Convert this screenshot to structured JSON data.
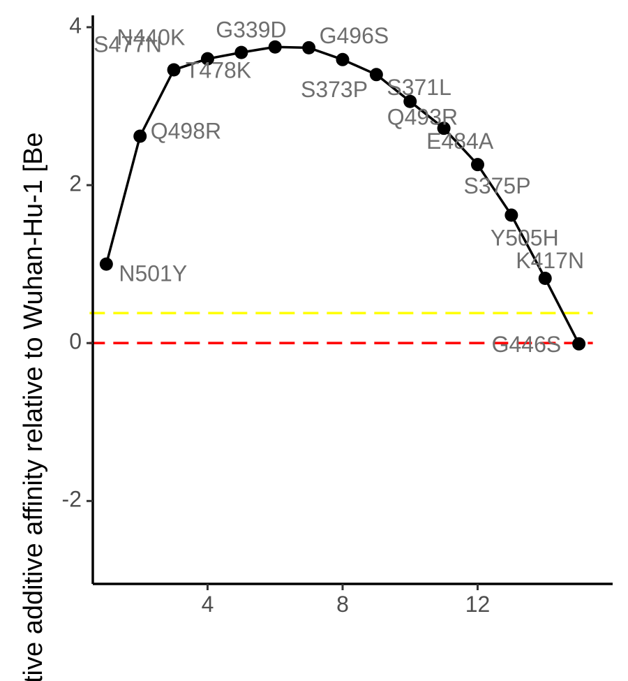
{
  "chart_data": {
    "type": "line",
    "title": "",
    "xlabel": "",
    "ylabel": "tive additive affinity relative to Wuhan-Hu-1 [Be",
    "xlim": [
      0.6,
      16
    ],
    "ylim": [
      -3.05,
      4.15
    ],
    "xticks": [
      4,
      8,
      12
    ],
    "yticks": [
      -2,
      0,
      2,
      4
    ],
    "grid": false,
    "legend": "none",
    "line_color": "#000000",
    "points": [
      {
        "x": 1,
        "y": 1.0,
        "label": "N501Y"
      },
      {
        "x": 2,
        "y": 2.62,
        "label": "Q498R"
      },
      {
        "x": 3,
        "y": 3.46,
        "label": "S477N"
      },
      {
        "x": 4,
        "y": 3.6,
        "label": "N440K"
      },
      {
        "x": 5,
        "y": 3.68,
        "label": "T478K"
      },
      {
        "x": 6,
        "y": 3.75,
        "label": "G339D"
      },
      {
        "x": 7,
        "y": 3.74,
        "label": "G496S"
      },
      {
        "x": 8,
        "y": 3.59,
        "label": "S373P"
      },
      {
        "x": 9,
        "y": 3.4,
        "label": "S371L"
      },
      {
        "x": 10,
        "y": 3.06,
        "label": "Q493R"
      },
      {
        "x": 11,
        "y": 2.72,
        "label": "E484A"
      },
      {
        "x": 12,
        "y": 2.26,
        "label": "S375P"
      },
      {
        "x": 13,
        "y": 1.62,
        "label": "Y505H"
      },
      {
        "x": 14,
        "y": 0.82,
        "label": "K417N"
      },
      {
        "x": 15,
        "y": -0.01,
        "label": "G446S"
      }
    ],
    "hlines": [
      {
        "y": 0.38,
        "color": "#ffff00",
        "style": "dashed"
      },
      {
        "y": 0.0,
        "color": "#ff0000",
        "style": "dashed"
      }
    ]
  }
}
